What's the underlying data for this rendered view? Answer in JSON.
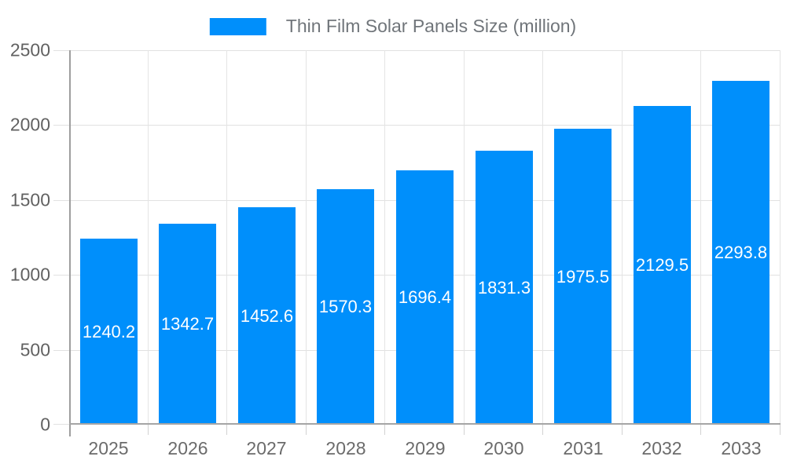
{
  "legend": {
    "label": "Thin Film Solar Panels Size (million)"
  },
  "chart_data": {
    "type": "bar",
    "title": "Thin Film Solar Panels Size (million)",
    "categories": [
      "2025",
      "2026",
      "2027",
      "2028",
      "2029",
      "2030",
      "2031",
      "2032",
      "2033"
    ],
    "values": [
      1240.2,
      1342.7,
      1452.6,
      1570.3,
      1696.4,
      1831.3,
      1975.5,
      2129.5,
      2293.8
    ],
    "series_name": "Thin Film Solar Panels Size (million)",
    "xlabel": "",
    "ylabel": "",
    "ylim": [
      0,
      2500
    ],
    "yticks": [
      0,
      500,
      1000,
      1500,
      2000,
      2500
    ],
    "grid": true,
    "legend_position": "top",
    "bar_color": "#008FFB",
    "data_label_color": "#ffffff",
    "data_labels": [
      "1240.2",
      "1342.7",
      "1452.6",
      "1570.3",
      "1696.4",
      "1831.3",
      "1975.5",
      "2129.5",
      "2293.8"
    ]
  }
}
